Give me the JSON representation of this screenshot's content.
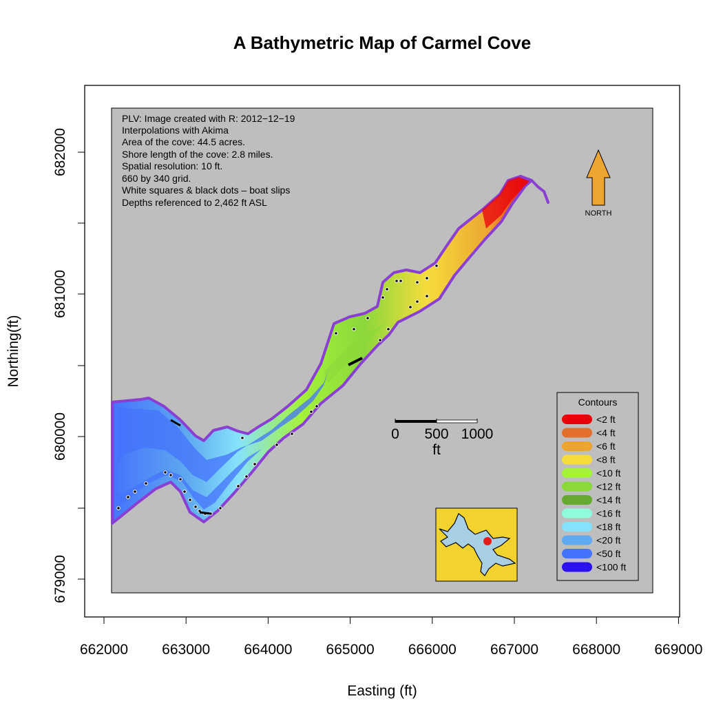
{
  "title": "A Bathymetric Map of  Carmel Cove",
  "axes": {
    "xlabel": "Easting (ft)",
    "ylabel": "Northing(ft)",
    "x_ticks": [
      "662000",
      "663000",
      "664000",
      "665000",
      "666000",
      "667000",
      "668000",
      "669000"
    ],
    "y_ticks": [
      "679000",
      "680000",
      "681000",
      "682000"
    ]
  },
  "notes": [
    "PLV: Image created with R: 2012−12−19",
    "Interpolations with Akima",
    "Area of the cove: 44.5 acres.",
    "Shore length of the cove: 2.8 miles.",
    "Spatial resolution: 10 ft.",
    "660 by 340 grid.",
    "White squares & black dots – boat slips",
    "Depths referenced to 2,462 ft ASL"
  ],
  "north_label": "NORTH",
  "scale_bar": {
    "labels": [
      "0",
      "500",
      "1000"
    ],
    "unit": "ft"
  },
  "legend": {
    "title": "Contours",
    "items": [
      {
        "label": "<2 ft",
        "color": "#e8000b"
      },
      {
        "label": "<4 ft",
        "color": "#e3702a"
      },
      {
        "label": "<6 ft",
        "color": "#eda531"
      },
      {
        "label": "<8 ft",
        "color": "#f5dc3c"
      },
      {
        "label": "<10 ft",
        "color": "#a4f23a"
      },
      {
        "label": "<12 ft",
        "color": "#8ad83a"
      },
      {
        "label": "<14 ft",
        "color": "#66a931"
      },
      {
        "label": "<16 ft",
        "color": "#8dfbdc"
      },
      {
        "label": "<18 ft",
        "color": "#86e2fc"
      },
      {
        "label": "<20 ft",
        "color": "#5ea9ef"
      },
      {
        "label": "<50 ft",
        "color": "#4473fc"
      },
      {
        "label": "<100 ft",
        "color": "#2b11ee"
      }
    ]
  },
  "colors": {
    "map_background": "#bebebe",
    "shoreline": "#8a3fd2",
    "inset_land": "#f2d22f",
    "inset_water": "#a9cfe4",
    "inset_marker": "#e51c1c",
    "north_arrow": "#eda531"
  }
}
